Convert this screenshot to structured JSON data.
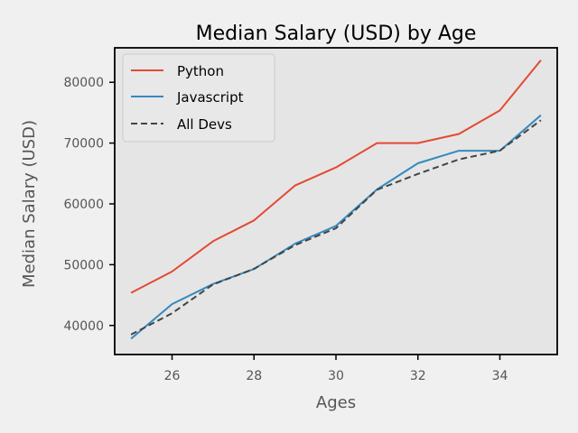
{
  "chart_data": {
    "type": "line",
    "title": "Median Salary (USD) by Age",
    "xlabel": "Ages",
    "ylabel": "Median Salary (USD)",
    "xlim": [
      24.6,
      35.4
    ],
    "ylim": [
      35220,
      85670
    ],
    "x_ticks": [
      26,
      28,
      30,
      32,
      34
    ],
    "x_tick_labels": [
      "26",
      "28",
      "30",
      "32",
      "34"
    ],
    "y_ticks": [
      40000,
      50000,
      60000,
      70000,
      80000
    ],
    "y_tick_labels": [
      "40000",
      "50000",
      "60000",
      "70000",
      "80000"
    ],
    "legend_position": "top-left",
    "grid": false,
    "x": [
      25,
      26,
      27,
      28,
      29,
      30,
      31,
      32,
      33,
      34,
      35
    ],
    "series": [
      {
        "name": "Python",
        "color": "#e24a33",
        "linestyle": "solid",
        "values": [
          45372,
          48876,
          53850,
          57287,
          63016,
          65998,
          70003,
          70000,
          71496,
          75370,
          83640
        ]
      },
      {
        "name": "Javascript",
        "color": "#348abd",
        "linestyle": "solid",
        "values": [
          37810,
          43515,
          46823,
          49293,
          53437,
          56373,
          62375,
          66674,
          68745,
          68746,
          74583
        ]
      },
      {
        "name": "All Devs",
        "color": "#444444",
        "linestyle": "dashed",
        "values": [
          38496,
          42000,
          46752,
          49320,
          53200,
          56000,
          62316,
          64928,
          67317,
          68748,
          73752
        ]
      }
    ]
  },
  "colors": {
    "figure_bg": "#f0f0f0",
    "axes_bg": "#e5e5e5",
    "axes_border": "#000000",
    "tick_text": "#555555"
  }
}
